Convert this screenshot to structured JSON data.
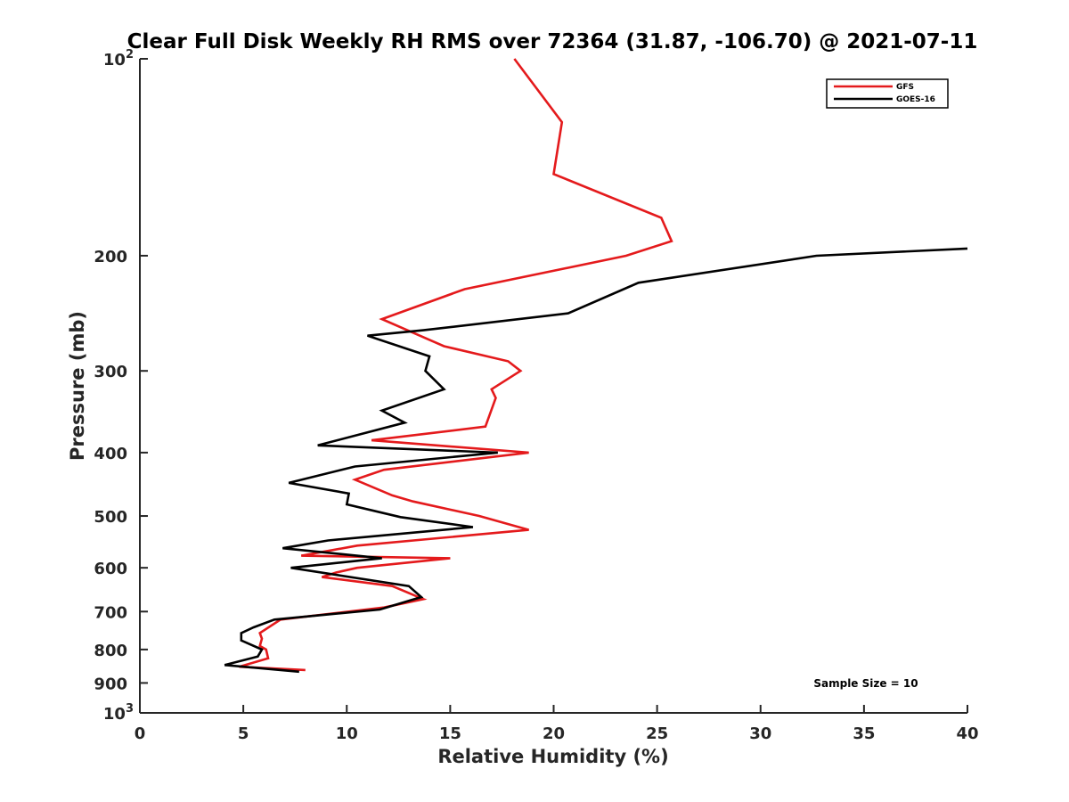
{
  "chart_data": {
    "type": "line",
    "title": "Clear Full Disk Weekly RH RMS over 72364 (31.87, -106.70) @ 2021-07-11",
    "xlabel": "Relative Humidity (%)",
    "ylabel": "Pressure (mb)",
    "xlim": [
      0,
      40
    ],
    "ylim": [
      100,
      1000
    ],
    "y_scale": "log",
    "y_reversed": true,
    "grid": false,
    "legend_position": "top-right",
    "x_ticks": [
      "0",
      "5",
      "10",
      "15",
      "20",
      "25",
      "30",
      "35",
      "40"
    ],
    "y_ticks": [
      {
        "value": 100,
        "base": "10",
        "exp": "2"
      },
      {
        "value": 200,
        "base": "200",
        "exp": ""
      },
      {
        "value": 300,
        "base": "300",
        "exp": ""
      },
      {
        "value": 400,
        "base": "400",
        "exp": ""
      },
      {
        "value": 500,
        "base": "500",
        "exp": ""
      },
      {
        "value": 600,
        "base": "600",
        "exp": ""
      },
      {
        "value": 700,
        "base": "700",
        "exp": ""
      },
      {
        "value": 800,
        "base": "800",
        "exp": ""
      },
      {
        "value": 900,
        "base": "900",
        "exp": ""
      },
      {
        "value": 1000,
        "base": "10",
        "exp": "3"
      }
    ],
    "series": [
      {
        "name": "GFS",
        "color": "#e41a1c",
        "points": [
          [
            18.1,
            100
          ],
          [
            20.4,
            125
          ],
          [
            20.0,
            150
          ],
          [
            25.2,
            175
          ],
          [
            25.7,
            190
          ],
          [
            23.5,
            200
          ],
          [
            15.7,
            225
          ],
          [
            11.7,
            250
          ],
          [
            14.7,
            275
          ],
          [
            17.8,
            290
          ],
          [
            18.4,
            300
          ],
          [
            17.0,
            320
          ],
          [
            17.2,
            330
          ],
          [
            16.7,
            365
          ],
          [
            11.2,
            383
          ],
          [
            18.8,
            400
          ],
          [
            11.8,
            425
          ],
          [
            10.4,
            440
          ],
          [
            12.2,
            465
          ],
          [
            13.2,
            475
          ],
          [
            16.4,
            500
          ],
          [
            18.8,
            525
          ],
          [
            10.5,
            555
          ],
          [
            7.8,
            575
          ],
          [
            15.0,
            580
          ],
          [
            10.5,
            600
          ],
          [
            9.5,
            610
          ],
          [
            8.8,
            620
          ],
          [
            12.2,
            640
          ],
          [
            13.7,
            670
          ],
          [
            11.8,
            690
          ],
          [
            6.8,
            720
          ],
          [
            5.8,
            755
          ],
          [
            5.9,
            770
          ],
          [
            5.8,
            790
          ],
          [
            6.1,
            800
          ],
          [
            6.2,
            825
          ],
          [
            4.8,
            850
          ],
          [
            8.0,
            860
          ]
        ]
      },
      {
        "name": "GOES-16",
        "color": "#000000",
        "points": [
          [
            40.0,
            195
          ],
          [
            32.7,
            200
          ],
          [
            24.1,
            220
          ],
          [
            20.7,
            245
          ],
          [
            13.7,
            260
          ],
          [
            11.0,
            265
          ],
          [
            14.0,
            285
          ],
          [
            13.8,
            300
          ],
          [
            14.7,
            320
          ],
          [
            11.7,
            345
          ],
          [
            12.8,
            360
          ],
          [
            8.6,
            390
          ],
          [
            17.3,
            400
          ],
          [
            10.4,
            420
          ],
          [
            7.2,
            445
          ],
          [
            10.1,
            462
          ],
          [
            10.0,
            480
          ],
          [
            12.6,
            502
          ],
          [
            16.1,
            520
          ],
          [
            9.1,
            545
          ],
          [
            6.9,
            560
          ],
          [
            11.7,
            580
          ],
          [
            7.3,
            600
          ],
          [
            13.0,
            640
          ],
          [
            13.6,
            665
          ],
          [
            11.6,
            695
          ],
          [
            6.5,
            720
          ],
          [
            5.5,
            740
          ],
          [
            4.9,
            755
          ],
          [
            4.9,
            775
          ],
          [
            5.9,
            800
          ],
          [
            5.7,
            820
          ],
          [
            4.1,
            845
          ],
          [
            7.7,
            865
          ]
        ]
      }
    ],
    "annotations": [
      {
        "text": "Sample Size = 10"
      }
    ]
  }
}
